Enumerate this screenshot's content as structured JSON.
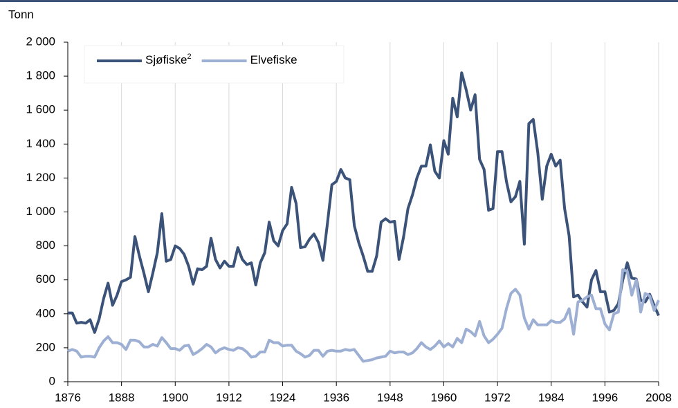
{
  "chart_data": {
    "type": "line",
    "y_label": "Tonn",
    "x": [
      1876,
      1877,
      1878,
      1879,
      1880,
      1881,
      1882,
      1883,
      1884,
      1885,
      1886,
      1887,
      1888,
      1889,
      1890,
      1891,
      1892,
      1893,
      1894,
      1895,
      1896,
      1897,
      1898,
      1899,
      1900,
      1901,
      1902,
      1903,
      1904,
      1905,
      1906,
      1907,
      1908,
      1909,
      1910,
      1911,
      1912,
      1913,
      1914,
      1915,
      1916,
      1917,
      1918,
      1919,
      1920,
      1921,
      1922,
      1923,
      1924,
      1925,
      1926,
      1927,
      1928,
      1929,
      1930,
      1931,
      1932,
      1933,
      1934,
      1935,
      1936,
      1937,
      1938,
      1939,
      1940,
      1941,
      1942,
      1943,
      1944,
      1945,
      1946,
      1947,
      1948,
      1949,
      1950,
      1951,
      1952,
      1953,
      1954,
      1955,
      1956,
      1957,
      1958,
      1959,
      1960,
      1961,
      1962,
      1963,
      1964,
      1965,
      1966,
      1967,
      1968,
      1969,
      1970,
      1971,
      1972,
      1973,
      1974,
      1975,
      1976,
      1977,
      1978,
      1979,
      1980,
      1981,
      1982,
      1983,
      1984,
      1985,
      1986,
      1987,
      1988,
      1989,
      1990,
      1991,
      1992,
      1993,
      1994,
      1995,
      1996,
      1997,
      1998,
      1999,
      2000,
      2001,
      2002,
      2003,
      2004,
      2005,
      2006,
      2007,
      2008
    ],
    "series": [
      {
        "name": "Sjøfiske",
        "name_superscript": "2",
        "color": "#3b5279",
        "values": [
          405,
          405,
          345,
          350,
          345,
          365,
          290,
          370,
          490,
          580,
          450,
          510,
          590,
          600,
          615,
          855,
          740,
          640,
          530,
          640,
          760,
          990,
          710,
          720,
          800,
          785,
          750,
          680,
          575,
          665,
          660,
          680,
          845,
          720,
          670,
          710,
          680,
          680,
          790,
          720,
          690,
          700,
          570,
          700,
          760,
          940,
          830,
          800,
          890,
          930,
          1145,
          1050,
          790,
          795,
          840,
          870,
          820,
          715,
          930,
          1160,
          1180,
          1250,
          1200,
          1190,
          920,
          820,
          740,
          650,
          650,
          740,
          940,
          960,
          940,
          945,
          720,
          850,
          1020,
          1100,
          1200,
          1270,
          1270,
          1395,
          1240,
          1200,
          1420,
          1340,
          1670,
          1560,
          1820,
          1720,
          1600,
          1690,
          1310,
          1250,
          1010,
          1020,
          1355,
          1355,
          1180,
          1060,
          1090,
          1180,
          810,
          1520,
          1545,
          1350,
          1075,
          1270,
          1340,
          1270,
          1305,
          1020,
          860,
          500,
          510,
          470,
          440,
          600,
          655,
          530,
          530,
          410,
          420,
          460,
          600,
          700,
          610,
          605,
          480,
          470,
          515,
          450,
          390
        ]
      },
      {
        "name": "Elvefiske",
        "color": "#9dafd2",
        "values": [
          180,
          190,
          180,
          145,
          150,
          150,
          145,
          200,
          240,
          265,
          230,
          230,
          220,
          190,
          245,
          245,
          235,
          205,
          205,
          220,
          210,
          260,
          230,
          195,
          195,
          185,
          210,
          215,
          160,
          175,
          195,
          220,
          205,
          170,
          190,
          200,
          190,
          185,
          200,
          195,
          175,
          145,
          150,
          175,
          175,
          245,
          230,
          230,
          210,
          215,
          215,
          180,
          165,
          145,
          155,
          185,
          185,
          150,
          180,
          185,
          180,
          180,
          190,
          185,
          190,
          155,
          120,
          125,
          130,
          140,
          145,
          150,
          180,
          170,
          175,
          175,
          160,
          170,
          195,
          230,
          205,
          190,
          210,
          240,
          205,
          225,
          205,
          255,
          230,
          310,
          295,
          270,
          355,
          270,
          230,
          250,
          280,
          315,
          430,
          520,
          545,
          510,
          375,
          310,
          365,
          335,
          335,
          335,
          360,
          350,
          350,
          370,
          430,
          280,
          470,
          480,
          500,
          510,
          430,
          430,
          340,
          305,
          400,
          410,
          660,
          650,
          510,
          600,
          410,
          520,
          505,
          420,
          480
        ]
      }
    ],
    "xlim": [
      1876,
      2008
    ],
    "xticks": [
      1876,
      1888,
      1900,
      1912,
      1924,
      1936,
      1948,
      1960,
      1972,
      1984,
      1996,
      2008
    ],
    "ylim": [
      0,
      2000
    ],
    "yticks": [
      0,
      200,
      400,
      600,
      800,
      {
        "value": 1000,
        "label": "1 000"
      },
      {
        "value": 1200,
        "label": "1 200"
      },
      {
        "value": 1400,
        "label": "1 400"
      },
      {
        "value": 1600,
        "label": "1 600"
      },
      {
        "value": 1800,
        "label": "1 800"
      },
      {
        "value": 2000,
        "label": "2 000"
      }
    ],
    "grid": "x"
  }
}
